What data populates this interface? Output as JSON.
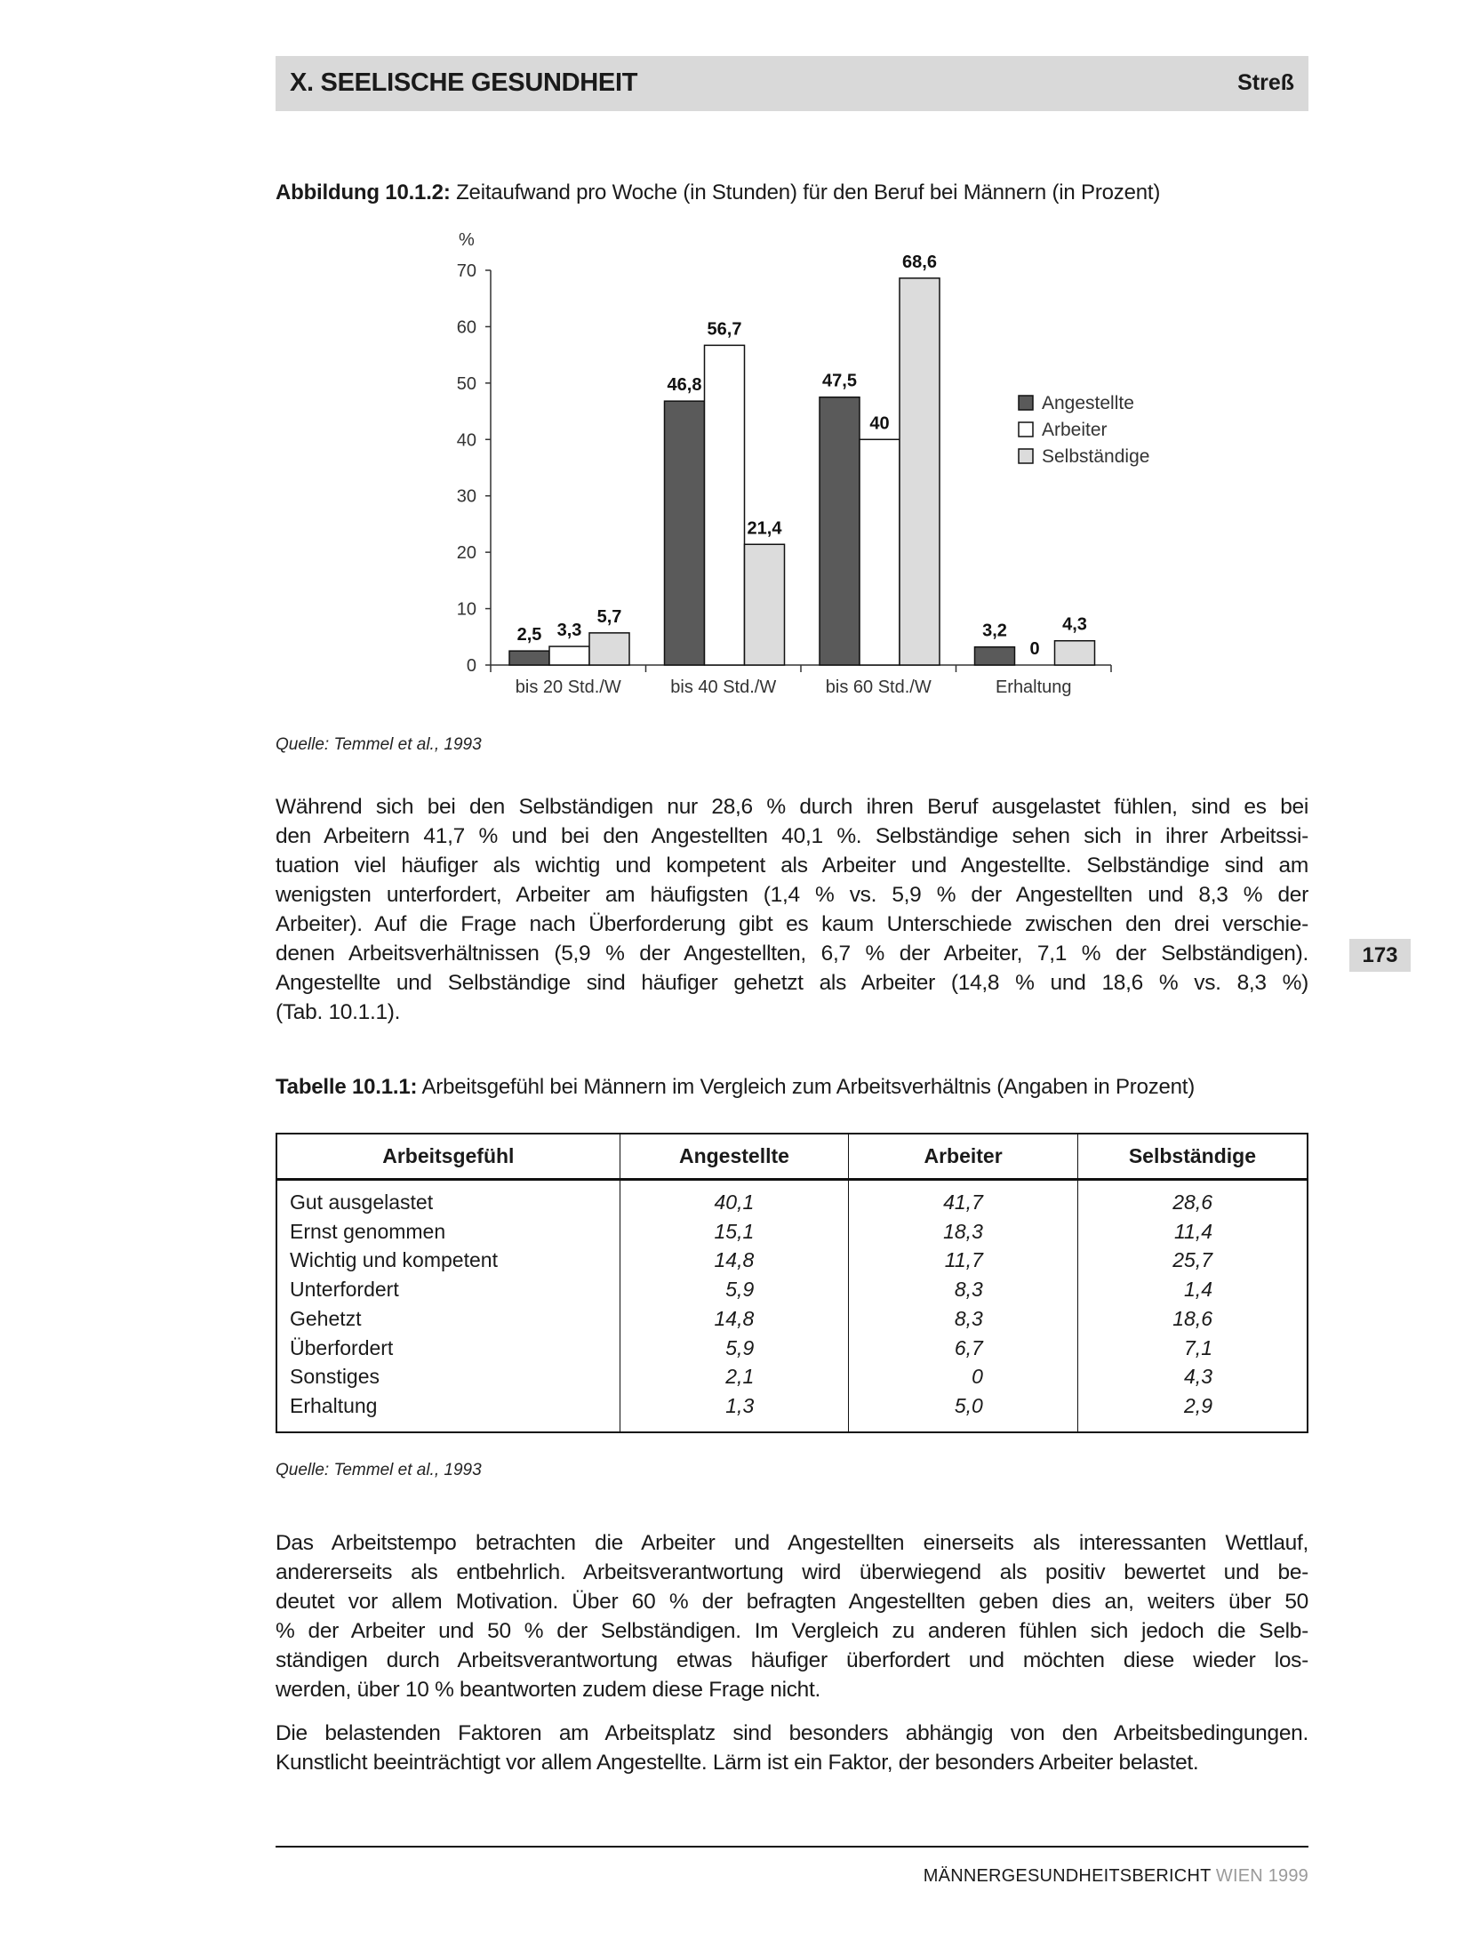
{
  "header": {
    "title": "X. SEELISCHE GESUNDHEIT",
    "section": "Streß"
  },
  "figure": {
    "label": "Abbildung 10.1.2:",
    "title": "Zeitaufwand pro Woche (in Stunden) für den Beruf bei Männern (in Prozent)",
    "source": "Quelle: Temmel et al., 1993"
  },
  "chart_data": {
    "type": "bar",
    "title": "",
    "ylabel": "%",
    "xlabel": "",
    "ylim": [
      0,
      70
    ],
    "yticks": [
      0,
      10,
      20,
      30,
      40,
      50,
      60,
      70
    ],
    "categories": [
      "bis 20 Std./W",
      "bis 40 Std./W",
      "bis 60 Std./W",
      "Erhaltung"
    ],
    "series": [
      {
        "name": "Angestellte",
        "color": "#5a5a5a",
        "values": [
          2.5,
          46.8,
          47.5,
          3.2
        ],
        "labels": [
          "2,5",
          "46,8",
          "47,5",
          "3,2"
        ]
      },
      {
        "name": "Arbeiter",
        "color": "#ffffff",
        "values": [
          3.3,
          56.7,
          40,
          0
        ],
        "labels": [
          "3,3",
          "56,7",
          "40",
          "0"
        ]
      },
      {
        "name": "Selbständige",
        "color": "#dcdcdc",
        "values": [
          5.7,
          21.4,
          68.6,
          4.3
        ],
        "labels": [
          "5,7",
          "21,4",
          "68,6",
          "4,3"
        ]
      }
    ],
    "legend_position": "right",
    "grid": false
  },
  "paragraph1": [
    "Während sich bei den Selbständigen nur 28,6 % durch ihren Beruf ausgelastet fühlen, sind es bei",
    "den Arbeitern 41,7 % und bei den Angestellten 40,1 %. Selbständige sehen sich in ihrer Arbeitssi-",
    "tuation viel häufiger als wichtig und kompetent als Arbeiter und Angestellte. Selbständige sind am",
    "wenigsten unterfordert, Arbeiter am häufigsten (1,4 % vs. 5,9 % der Angestellten und 8,3 % der",
    "Arbeiter). Auf die Frage nach Überforderung gibt es kaum Unterschiede zwischen den drei verschie-",
    "denen Arbeitsverhältnissen (5,9 % der Angestellten, 6,7 % der Arbeiter, 7,1 % der Selbständigen).",
    "Angestellte und Selbständige sind häufiger gehetzt als Arbeiter (14,8 % und 18,6 % vs. 8,3 %)",
    "(Tab. 10.1.1)."
  ],
  "page_number": "173",
  "table": {
    "label": "Tabelle 10.1.1:",
    "title": "Arbeitsgefühl bei Männern im Vergleich zum Arbeitsverhältnis (Angaben in Prozent)",
    "headers": [
      "Arbeitsgefühl",
      "Angestellte",
      "Arbeiter",
      "Selbständige"
    ],
    "rows": [
      [
        "Gut ausgelastet",
        "40,1",
        "41,7",
        "28,6"
      ],
      [
        "Ernst genommen",
        "15,1",
        "18,3",
        "11,4"
      ],
      [
        "Wichtig und kompetent",
        "14,8",
        "11,7",
        "25,7"
      ],
      [
        "Unterfordert",
        "5,9",
        "8,3",
        "1,4"
      ],
      [
        "Gehetzt",
        "14,8",
        "8,3",
        "18,6"
      ],
      [
        "Überfordert",
        "5,9",
        "6,7",
        "7,1"
      ],
      [
        "Sonstiges",
        "2,1",
        "0",
        "4,3"
      ],
      [
        "Erhaltung",
        "1,3",
        "5,0",
        "2,9"
      ]
    ],
    "source": "Quelle: Temmel et al., 1993"
  },
  "paragraph2": [
    "Das Arbeitstempo betrachten die Arbeiter und Angestellten einerseits als interessanten Wettlauf,",
    "andererseits als entbehrlich. Arbeitsverantwortung wird überwiegend als positiv bewertet und be-",
    "deutet vor allem Motivation. Über 60 % der befragten Angestellten geben dies an, weiters über 50",
    "% der Arbeiter und 50 % der Selbständigen. Im Vergleich zu anderen fühlen sich jedoch die Selb-",
    "ständigen durch Arbeitsverantwortung etwas häufiger überfordert und möchten diese wieder los-",
    "werden, über 10 % beantworten zudem diese Frage nicht."
  ],
  "paragraph3": [
    "Die belastenden Faktoren am Arbeitsplatz sind besonders abhängig von den Arbeitsbedingungen.",
    "Kunstlicht beeinträchtigt vor allem Angestellte. Lärm ist ein Faktor, der besonders Arbeiter belastet."
  ],
  "footer": {
    "publication": "MÄNNERGESUNDHEITSBERICHT",
    "edition": "WIEN 1999"
  }
}
